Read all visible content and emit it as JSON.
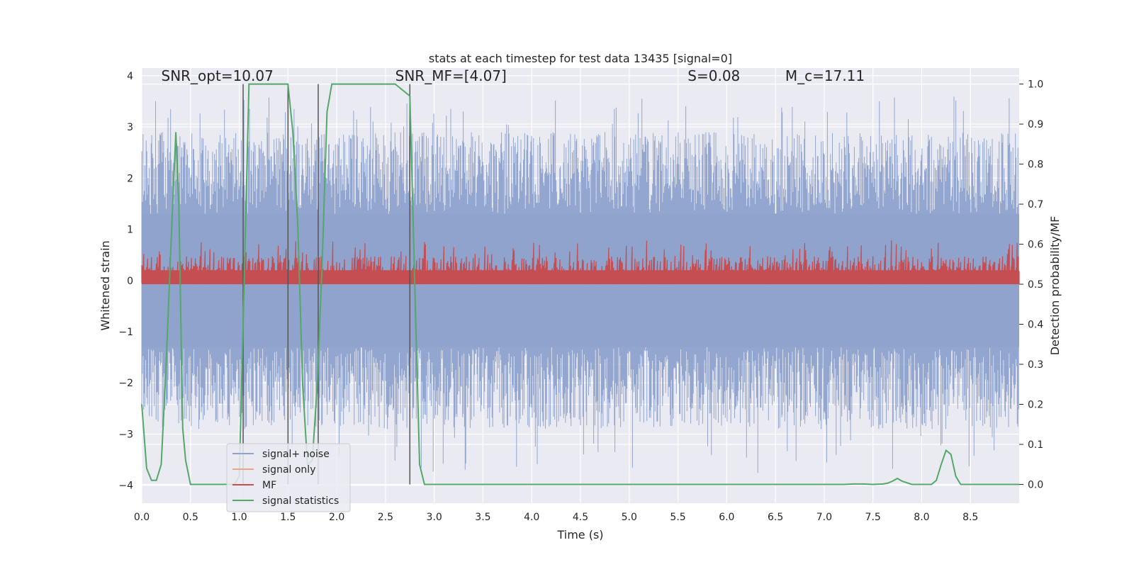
{
  "chart_data": {
    "type": "line",
    "title": "stats at each timestep for test data 13435 [signal=0]",
    "xlabel": "Time (s)",
    "ylabel": "Whitened strain",
    "ylabel_right": "Detection probability/MF",
    "xlim": [
      0,
      9.0
    ],
    "ylim": [
      -4.35,
      4.15
    ],
    "ylim_right": [
      -0.047,
      1.04
    ],
    "xticks": [
      0.0,
      0.5,
      1.0,
      1.5,
      2.0,
      2.5,
      3.0,
      3.5,
      4.0,
      4.5,
      5.0,
      5.5,
      6.0,
      6.5,
      7.0,
      7.5,
      8.0,
      8.5
    ],
    "xtick_labels": [
      "0.0",
      "0.5",
      "1.0",
      "1.5",
      "2.0",
      "2.5",
      "3.0",
      "3.5",
      "4.0",
      "4.5",
      "5.0",
      "5.5",
      "6.0",
      "6.5",
      "7.0",
      "7.5",
      "8.0",
      "8.5"
    ],
    "yticks": [
      -4,
      -3,
      -2,
      -1,
      0,
      1,
      2,
      3,
      4
    ],
    "ytick_labels": [
      "−4",
      "−3",
      "−2",
      "−1",
      "0",
      "1",
      "2",
      "3",
      "4"
    ],
    "yticks_right": [
      0.0,
      0.1,
      0.2,
      0.3,
      0.4,
      0.5,
      0.6,
      0.7,
      0.8,
      0.9,
      1.0
    ],
    "ytick_right_labels": [
      "0.0",
      "0.1",
      "0.2",
      "0.3",
      "0.4",
      "0.5",
      "0.6",
      "0.7",
      "0.8",
      "0.9",
      "1.0"
    ],
    "grid": true,
    "legend_position": "lower-left",
    "annotations": [
      {
        "name": "snr-opt",
        "text": "SNR_opt=10.07",
        "x": 0.2,
        "y": 4.0
      },
      {
        "name": "snr-mf",
        "text": "SNR_MF=[4.07]",
        "x": 2.6,
        "y": 4.0
      },
      {
        "name": "s-value",
        "text": "S=0.08",
        "x": 5.6,
        "y": 4.0
      },
      {
        "name": "mc-value",
        "text": "M_c=17.11",
        "x": 6.6,
        "y": 4.0
      }
    ],
    "vlines": [
      1.04,
      1.5,
      1.81,
      2.75
    ],
    "series": [
      {
        "name": "signal+ noise",
        "color": "#8ea2cc",
        "axis": "left",
        "style": "noise",
        "amplitude_range": [
          -3.8,
          3.6
        ]
      },
      {
        "name": "signal only",
        "color": "#e8a587",
        "axis": "left",
        "style": "line",
        "values": []
      },
      {
        "name": "MF",
        "color": "#c44e52",
        "axis": "right",
        "style": "noise",
        "amplitude_range": [
          0.5,
          0.6
        ]
      },
      {
        "name": "signal statistics",
        "color": "#55a868",
        "axis": "right",
        "style": "line",
        "x": [
          0.0,
          0.05,
          0.1,
          0.15,
          0.2,
          0.25,
          0.3,
          0.35,
          0.38,
          0.42,
          0.45,
          0.5,
          0.55,
          0.6,
          0.7,
          0.8,
          0.9,
          0.95,
          1.0,
          1.05,
          1.1,
          1.15,
          1.2,
          1.3,
          1.4,
          1.5,
          1.55,
          1.6,
          1.65,
          1.7,
          1.75,
          1.8,
          1.85,
          1.9,
          1.95,
          2.0,
          2.1,
          2.2,
          2.3,
          2.4,
          2.5,
          2.6,
          2.7,
          2.75,
          2.8,
          2.85,
          2.9,
          3.0,
          3.5,
          4.0,
          4.5,
          5.0,
          5.5,
          6.0,
          6.5,
          7.0,
          7.2,
          7.3,
          7.4,
          7.5,
          7.6,
          7.65,
          7.7,
          7.75,
          7.8,
          7.9,
          8.0,
          8.1,
          8.15,
          8.2,
          8.25,
          8.3,
          8.35,
          8.4,
          8.5,
          9.0
        ],
        "values": [
          0.2,
          0.04,
          0.01,
          0.01,
          0.05,
          0.3,
          0.6,
          0.88,
          0.7,
          0.14,
          0.06,
          0.0,
          0.0,
          0.0,
          0.0,
          0.0,
          0.0,
          0.0,
          0.02,
          0.5,
          1.0,
          1.0,
          1.0,
          1.0,
          1.0,
          1.0,
          0.88,
          0.65,
          0.25,
          0.05,
          0.06,
          0.25,
          0.55,
          0.93,
          1.0,
          1.0,
          1.0,
          1.0,
          1.0,
          1.0,
          1.0,
          1.0,
          0.98,
          0.97,
          0.5,
          0.05,
          0.0,
          0.0,
          0.0,
          0.0,
          0.0,
          0.0,
          0.0,
          0.0,
          0.0,
          0.0,
          0.0,
          0.001,
          0.001,
          0.0,
          0.001,
          0.003,
          0.008,
          0.015,
          0.008,
          0.0,
          0.0,
          0.0,
          0.01,
          0.05,
          0.085,
          0.075,
          0.02,
          0.0,
          0.0,
          0.0
        ]
      }
    ]
  }
}
